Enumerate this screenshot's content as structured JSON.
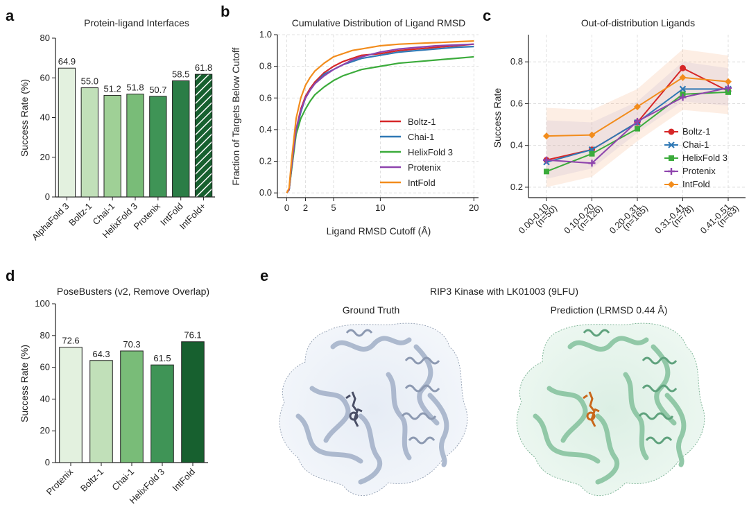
{
  "colors": {
    "greens": [
      "#e3f1df",
      "#c1e0b9",
      "#9fd096",
      "#79bc78",
      "#3f9456",
      "#2b7d46",
      "#17602f"
    ],
    "boltz": "#d62728",
    "chai": "#2f78b5",
    "helix": "#3bab3b",
    "protenix": "#8e44ad",
    "intfold": "#f28c1c",
    "gt_protein": "#b7c3d8",
    "pred_protein": "#9ccfb2"
  },
  "panels": {
    "a": {
      "letter": "a"
    },
    "b": {
      "letter": "b"
    },
    "c": {
      "letter": "c"
    },
    "d": {
      "letter": "d"
    },
    "e": {
      "letter": "e"
    }
  },
  "chart_data": [
    {
      "id": "a",
      "type": "bar",
      "title": "Protein-ligand Interfaces",
      "ylabel": "Success Rate (%)",
      "xlabel": "",
      "ylim": [
        0,
        80
      ],
      "yticks": [
        "0",
        "20",
        "40",
        "60",
        "80"
      ],
      "categories": [
        "AlphaFold 3",
        "Boltz-1",
        "Chai-1",
        "HelixFold 3",
        "Protenix",
        "IntFold",
        "IntFold+"
      ],
      "values": [
        64.9,
        55.0,
        51.2,
        51.8,
        50.7,
        58.5,
        61.8
      ],
      "labels": [
        "64.9",
        "55.0",
        "51.2",
        "51.8",
        "50.7",
        "58.5",
        "61.8"
      ],
      "hatched": [
        false,
        false,
        false,
        false,
        false,
        false,
        true
      ]
    },
    {
      "id": "b",
      "type": "line",
      "title": "Cumulative Distribution of Ligand RMSD",
      "xlabel": "Ligand RMSD Cutoff (Å)",
      "ylabel": "Fraction of Targets Below Cutoff",
      "xlim": [
        -1,
        20.5
      ],
      "ylim": [
        -0.03,
        1.0
      ],
      "xticks": [
        "0",
        "2",
        "5",
        "10",
        "20"
      ],
      "yticks": [
        "0.0",
        "0.2",
        "0.4",
        "0.6",
        "0.8",
        "1.0"
      ],
      "x": [
        0,
        0.25,
        0.5,
        1,
        1.5,
        2,
        2.5,
        3,
        4,
        5,
        6,
        7,
        8,
        10,
        12,
        14,
        16,
        18,
        20
      ],
      "series": [
        {
          "name": "Boltz-1",
          "color": "boltz",
          "values": [
            0.0,
            0.02,
            0.15,
            0.4,
            0.53,
            0.61,
            0.66,
            0.7,
            0.76,
            0.8,
            0.83,
            0.85,
            0.87,
            0.88,
            0.9,
            0.91,
            0.92,
            0.93,
            0.94
          ]
        },
        {
          "name": "Chai-1",
          "color": "chai",
          "values": [
            0.0,
            0.02,
            0.15,
            0.39,
            0.51,
            0.6,
            0.65,
            0.69,
            0.75,
            0.78,
            0.81,
            0.83,
            0.85,
            0.87,
            0.89,
            0.9,
            0.91,
            0.92,
            0.925
          ]
        },
        {
          "name": "HelixFold 3",
          "color": "helix",
          "values": [
            0.0,
            0.02,
            0.14,
            0.37,
            0.47,
            0.53,
            0.58,
            0.62,
            0.67,
            0.71,
            0.74,
            0.76,
            0.78,
            0.8,
            0.82,
            0.83,
            0.84,
            0.85,
            0.86
          ]
        },
        {
          "name": "Protenix",
          "color": "protenix",
          "values": [
            0.0,
            0.02,
            0.16,
            0.4,
            0.52,
            0.6,
            0.65,
            0.69,
            0.74,
            0.78,
            0.81,
            0.84,
            0.86,
            0.89,
            0.91,
            0.92,
            0.93,
            0.935,
            0.94
          ]
        },
        {
          "name": "IntFold",
          "color": "intfold",
          "values": [
            0.0,
            0.03,
            0.2,
            0.47,
            0.6,
            0.68,
            0.73,
            0.77,
            0.82,
            0.86,
            0.88,
            0.9,
            0.91,
            0.93,
            0.94,
            0.945,
            0.95,
            0.955,
            0.96
          ]
        }
      ]
    },
    {
      "id": "c",
      "type": "line",
      "title": "Out-of-distribution Ligands",
      "ylabel": "Success Rate",
      "xlabel": "",
      "ylim": [
        0.15,
        0.93
      ],
      "yticks": [
        "0.2",
        "0.4",
        "0.6",
        "0.8"
      ],
      "categories": [
        [
          "0.00-0.10",
          "(n=50)"
        ],
        [
          "0.10-0.20",
          "(n=126)"
        ],
        [
          "0.20-0.31",
          "(n=165)"
        ],
        [
          "0.31-0.41",
          "(n=78)"
        ],
        [
          "0.41-0.51",
          "(n=63)"
        ]
      ],
      "series": [
        {
          "name": "Boltz-1",
          "color": "boltz",
          "marker": "circle",
          "values": [
            0.33,
            0.38,
            0.51,
            0.77,
            0.66
          ]
        },
        {
          "name": "Chai-1",
          "color": "chai",
          "marker": "x",
          "values": [
            0.32,
            0.38,
            0.51,
            0.67,
            0.67
          ]
        },
        {
          "name": "HelixFold 3",
          "color": "helix",
          "marker": "square",
          "values": [
            0.275,
            0.36,
            0.48,
            0.645,
            0.655
          ]
        },
        {
          "name": "Protenix",
          "color": "protenix",
          "marker": "plus",
          "values": [
            0.33,
            0.315,
            0.515,
            0.63,
            0.675
          ]
        },
        {
          "name": "IntFold",
          "color": "intfold",
          "marker": "diamond",
          "values": [
            0.445,
            0.45,
            0.585,
            0.725,
            0.705
          ]
        }
      ],
      "band_lower": [
        0.2,
        0.25,
        0.42,
        0.57,
        0.55
      ],
      "band_upper": [
        0.58,
        0.57,
        0.67,
        0.86,
        0.83
      ]
    },
    {
      "id": "d",
      "type": "bar",
      "title": "PoseBusters (v2, Remove Overlap)",
      "ylabel": "Success Rate (%)",
      "xlabel": "",
      "ylim": [
        0,
        100
      ],
      "yticks": [
        "0",
        "20",
        "40",
        "60",
        "80",
        "100"
      ],
      "categories": [
        "Protenix",
        "Boltz-1",
        "Chai-1",
        "HelixFold 3",
        "IntFold"
      ],
      "values": [
        72.6,
        64.3,
        70.3,
        61.5,
        76.1
      ],
      "labels": [
        "72.6",
        "64.3",
        "70.3",
        "61.5",
        "76.1"
      ]
    }
  ],
  "panel_e": {
    "title": "RIP3 Kinase with LK01003 (9LFU)",
    "left_title": "Ground Truth",
    "right_title": "Prediction (LRMSD 0.44 Å)"
  }
}
